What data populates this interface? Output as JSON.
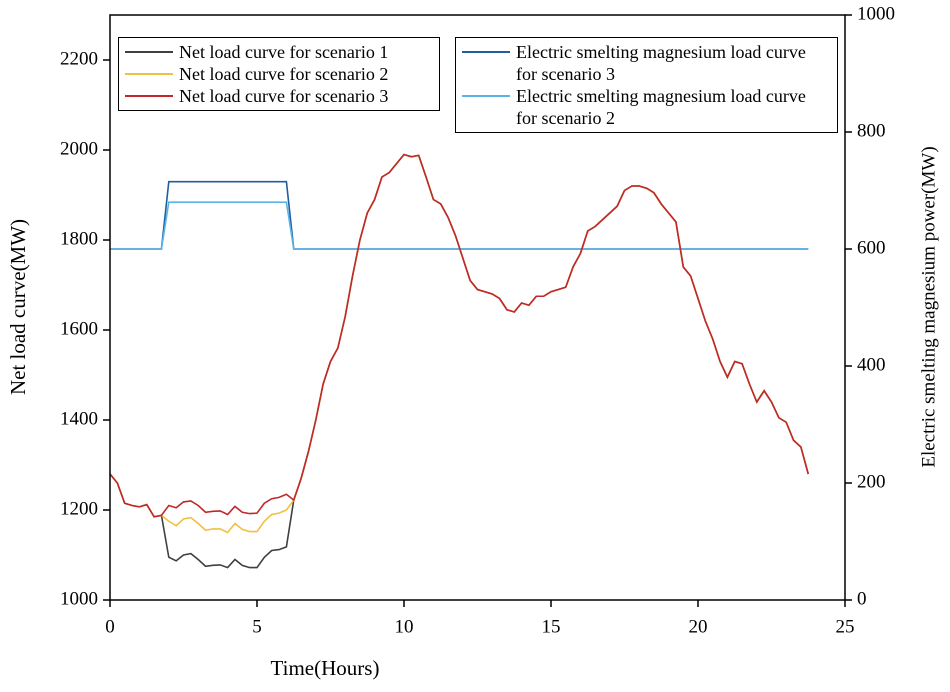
{
  "chart_data": {
    "type": "line",
    "xlabel": "Time(Hours)",
    "ylabel": "Net load curve(MW)",
    "y2label": "Electric smelting magnesium power(MW)",
    "xlim": [
      0,
      25
    ],
    "xticks": [
      0,
      5,
      10,
      15,
      20,
      25
    ],
    "ylim": [
      1000,
      2300
    ],
    "yticks": [
      1000,
      1200,
      1400,
      1600,
      1800,
      2000,
      2200
    ],
    "y2lim": [
      0,
      1000
    ],
    "y2ticks": [
      0,
      200,
      400,
      600,
      800,
      1000
    ],
    "legend": {
      "y": "upper left",
      "y2": "upper right"
    },
    "x": [
      0,
      0.25,
      0.5,
      0.75,
      1,
      1.25,
      1.5,
      1.75,
      2,
      2.25,
      2.5,
      2.75,
      3,
      3.25,
      3.5,
      3.75,
      4,
      4.25,
      4.5,
      4.75,
      5,
      5.25,
      5.5,
      5.75,
      6,
      6.25,
      6.5,
      6.75,
      7,
      7.25,
      7.5,
      7.75,
      8,
      8.25,
      8.5,
      8.75,
      9,
      9.25,
      9.5,
      9.75,
      10,
      10.25,
      10.5,
      10.75,
      11,
      11.25,
      11.5,
      11.75,
      12,
      12.25,
      12.5,
      12.75,
      13,
      13.25,
      13.5,
      13.75,
      14,
      14.25,
      14.5,
      14.75,
      15,
      15.25,
      15.5,
      15.75,
      16,
      16.25,
      16.5,
      16.75,
      17,
      17.25,
      17.5,
      17.75,
      18,
      18.25,
      18.5,
      18.75,
      19,
      19.25,
      19.5,
      19.75,
      20,
      20.25,
      20.5,
      20.75,
      21,
      21.25,
      21.5,
      21.75,
      22,
      22.25,
      22.5,
      22.75,
      23,
      23.25,
      23.5,
      23.75
    ],
    "series": [
      {
        "name": "Electric smelting magnesium load curve for scenario 3",
        "color": "#1f5f9f",
        "axis": "y2",
        "values": [
          600,
          600,
          600,
          600,
          600,
          600,
          600,
          600,
          715,
          715,
          715,
          715,
          715,
          715,
          715,
          715,
          715,
          715,
          715,
          715,
          715,
          715,
          715,
          715,
          715,
          600,
          600,
          600,
          600,
          600,
          600,
          600,
          600,
          600,
          600,
          600,
          600,
          600,
          600,
          600,
          600,
          600,
          600,
          600,
          600,
          600,
          600,
          600,
          600,
          600,
          600,
          600,
          600,
          600,
          600,
          600,
          600,
          600,
          600,
          600,
          600,
          600,
          600,
          600,
          600,
          600,
          600,
          600,
          600,
          600,
          600,
          600,
          600,
          600,
          600,
          600,
          600,
          600,
          600,
          600,
          600,
          600,
          600,
          600,
          600,
          600,
          600,
          600,
          600,
          600,
          600,
          600,
          600,
          600,
          600,
          600
        ]
      },
      {
        "name": "Electric smelting magnesium load curve for scenario 2",
        "color": "#5ab4e8",
        "axis": "y2",
        "values": [
          600,
          600,
          600,
          600,
          600,
          600,
          600,
          600,
          680,
          680,
          680,
          680,
          680,
          680,
          680,
          680,
          680,
          680,
          680,
          680,
          680,
          680,
          680,
          680,
          680,
          600,
          600,
          600,
          600,
          600,
          600,
          600,
          600,
          600,
          600,
          600,
          600,
          600,
          600,
          600,
          600,
          600,
          600,
          600,
          600,
          600,
          600,
          600,
          600,
          600,
          600,
          600,
          600,
          600,
          600,
          600,
          600,
          600,
          600,
          600,
          600,
          600,
          600,
          600,
          600,
          600,
          600,
          600,
          600,
          600,
          600,
          600,
          600,
          600,
          600,
          600,
          600,
          600,
          600,
          600,
          600,
          600,
          600,
          600,
          600,
          600,
          600,
          600,
          600,
          600,
          600,
          600,
          600,
          600,
          600,
          600
        ]
      },
      {
        "name": "Net load curve for scenario 1",
        "color": "#404040",
        "values": [
          1280,
          1260,
          1215,
          1210,
          1207,
          1212,
          1185,
          1188,
          1095,
          1087,
          1100,
          1103,
          1090,
          1075,
          1077,
          1078,
          1072,
          1090,
          1077,
          1072,
          1072,
          1095,
          1110,
          1112,
          1118,
          1222,
          1270,
          1330,
          1400,
          1480,
          1530,
          1560,
          1630,
          1720,
          1800,
          1860,
          1890,
          1940,
          1950,
          1970,
          1990,
          1985,
          1988,
          1940,
          1890,
          1880,
          1850,
          1810,
          1760,
          1710,
          1690,
          1685,
          1680,
          1670,
          1645,
          1640,
          1660,
          1655,
          1675,
          1675,
          1685,
          1690,
          1695,
          1740,
          1770,
          1820,
          1830,
          1845,
          1860,
          1875,
          1910,
          1920,
          1920,
          1915,
          1905,
          1880,
          1860,
          1840,
          1740,
          1720,
          1670,
          1620,
          1580,
          1530,
          1495,
          1530,
          1525,
          1480,
          1440,
          1465,
          1440,
          1405,
          1395,
          1355,
          1340,
          1280
        ]
      },
      {
        "name": "Net load curve for scenario 2",
        "color": "#f0c040",
        "values": [
          1280,
          1260,
          1215,
          1210,
          1207,
          1212,
          1185,
          1188,
          1175,
          1165,
          1180,
          1183,
          1170,
          1155,
          1158,
          1158,
          1150,
          1170,
          1157,
          1152,
          1152,
          1175,
          1190,
          1193,
          1200,
          1222,
          1270,
          1330,
          1400,
          1480,
          1530,
          1560,
          1630,
          1720,
          1800,
          1860,
          1890,
          1940,
          1950,
          1970,
          1990,
          1985,
          1988,
          1940,
          1890,
          1880,
          1850,
          1810,
          1760,
          1710,
          1690,
          1685,
          1680,
          1670,
          1645,
          1640,
          1660,
          1655,
          1675,
          1675,
          1685,
          1690,
          1695,
          1740,
          1770,
          1820,
          1830,
          1845,
          1860,
          1875,
          1910,
          1920,
          1920,
          1915,
          1905,
          1880,
          1860,
          1840,
          1740,
          1720,
          1670,
          1620,
          1580,
          1530,
          1495,
          1530,
          1525,
          1480,
          1440,
          1465,
          1440,
          1405,
          1395,
          1355,
          1340,
          1280
        ]
      },
      {
        "name": "Net load curve for scenario 3",
        "color": "#c0282a",
        "values": [
          1280,
          1260,
          1215,
          1210,
          1207,
          1212,
          1185,
          1188,
          1210,
          1205,
          1218,
          1220,
          1210,
          1195,
          1197,
          1198,
          1190,
          1208,
          1195,
          1192,
          1193,
          1215,
          1225,
          1228,
          1235,
          1222,
          1270,
          1330,
          1400,
          1480,
          1530,
          1560,
          1630,
          1720,
          1800,
          1860,
          1890,
          1940,
          1950,
          1970,
          1990,
          1985,
          1988,
          1940,
          1890,
          1880,
          1850,
          1810,
          1760,
          1710,
          1690,
          1685,
          1680,
          1670,
          1645,
          1640,
          1660,
          1655,
          1675,
          1675,
          1685,
          1690,
          1695,
          1740,
          1770,
          1820,
          1830,
          1845,
          1860,
          1875,
          1910,
          1920,
          1920,
          1915,
          1905,
          1880,
          1860,
          1840,
          1740,
          1720,
          1670,
          1620,
          1580,
          1530,
          1495,
          1530,
          1525,
          1480,
          1440,
          1465,
          1440,
          1405,
          1395,
          1355,
          1340,
          1280
        ]
      }
    ]
  }
}
